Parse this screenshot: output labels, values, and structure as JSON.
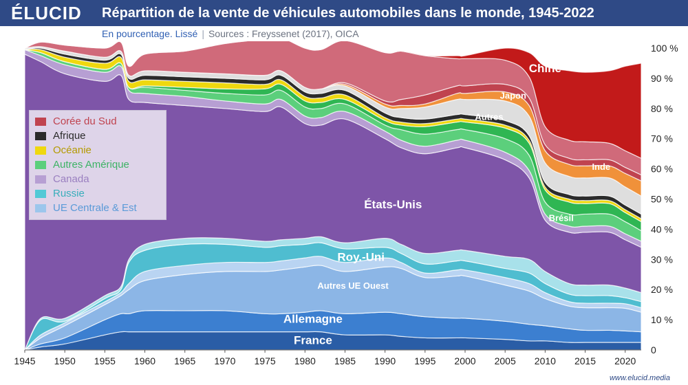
{
  "header": {
    "logo": "ÉLUCID",
    "title": "Répartition de la vente de véhicules automobiles dans le monde, 1945-2022",
    "subtitle": "En pourcentage. Lissé",
    "separator": "|",
    "sources": "Sources : Freyssenet (2017), OICA",
    "watermark": "www.elucid.media"
  },
  "legend": [
    {
      "name": "Corée du Sud",
      "color": "#c0434f",
      "text_color": "#c0434f"
    },
    {
      "name": "Afrique",
      "color": "#2b2b2b",
      "text_color": "#2b2b2b"
    },
    {
      "name": "Océanie",
      "color": "#efd80f",
      "text_color": "#b49a00"
    },
    {
      "name": "Autres Amérique",
      "color": "#5ccf7c",
      "text_color": "#3db365"
    },
    {
      "name": "Canada",
      "color": "#b79fd3",
      "text_color": "#9a7fc0"
    },
    {
      "name": "Russie",
      "color": "#52c9d6",
      "text_color": "#38aebb"
    },
    {
      "name": "UE Centrale & Est",
      "color": "#9cc6ec",
      "text_color": "#5a9ad8"
    }
  ],
  "chart_data": {
    "type": "area",
    "stacked": true,
    "title": "Répartition de la vente de véhicules automobiles dans le monde, 1945-2022",
    "subtitle": "En pourcentage. Lissé",
    "x": [
      1945,
      1947,
      1950,
      1955,
      1957,
      1958,
      1960,
      1965,
      1970,
      1975,
      1977,
      1980,
      1982,
      1985,
      1990,
      1992,
      1995,
      1999,
      2000,
      2005,
      2008,
      2010,
      2013,
      2015,
      2018,
      2020,
      2022
    ],
    "xlim": [
      1945,
      2022
    ],
    "ylim": [
      0,
      100
    ],
    "xticks": [
      1945,
      1950,
      1955,
      1960,
      1965,
      1970,
      1975,
      1980,
      1985,
      1990,
      1995,
      2000,
      2005,
      2010,
      2015,
      2020
    ],
    "yticks": [
      {
        "value": 0,
        "label": "0"
      },
      {
        "value": 10,
        "label": "10 %"
      },
      {
        "value": 20,
        "label": "20 %"
      },
      {
        "value": 30,
        "label": "30 %"
      },
      {
        "value": 40,
        "label": "40 %"
      },
      {
        "value": 50,
        "label": "50 %"
      },
      {
        "value": 60,
        "label": "60 %"
      },
      {
        "value": 70,
        "label": "70 %"
      },
      {
        "value": 80,
        "label": "80 %"
      },
      {
        "value": 90,
        "label": "90 %"
      },
      {
        "value": 100,
        "label": "100 %"
      }
    ],
    "series": [
      {
        "name": "France",
        "color": "#2a5da6",
        "values": [
          0,
          1,
          2,
          5,
          6,
          6,
          6,
          6,
          6,
          6,
          6,
          6,
          6,
          5,
          5,
          4.5,
          4,
          4,
          4,
          3.5,
          3,
          3,
          2.5,
          2.5,
          2.5,
          2.5,
          2.5
        ]
      },
      {
        "name": "Allemagne",
        "color": "#3c7fd0",
        "values": [
          0,
          1,
          2,
          5,
          6,
          6,
          7,
          7,
          7,
          6,
          6,
          6.5,
          7,
          7,
          7.5,
          7.5,
          7,
          6.5,
          6.5,
          6,
          5.5,
          5,
          4.5,
          4,
          4,
          3.8,
          3.5
        ]
      },
      {
        "name": "Autres UE Ouest",
        "color": "#8cb6e6",
        "values": [
          0,
          2,
          4,
          5,
          6,
          8,
          10,
          12,
          13,
          14,
          14.5,
          15,
          15,
          14,
          15,
          15,
          13,
          14,
          14,
          12,
          11,
          9,
          7.5,
          7.5,
          7.5,
          7.5,
          6.5
        ]
      },
      {
        "name": "UE Centrale & Est",
        "color": "#b9d4f2",
        "values": [
          0,
          1,
          1,
          1,
          1,
          2,
          3,
          3,
          3,
          3,
          3,
          3,
          3,
          3,
          3,
          2,
          1.5,
          2,
          2,
          2.5,
          2.5,
          2,
          1.5,
          1.5,
          1.5,
          1.5,
          1.5
        ]
      },
      {
        "name": "Russie",
        "color": "#4fbdd0",
        "values": [
          0,
          5,
          0.5,
          1,
          1,
          7,
          7,
          7,
          6,
          5,
          5,
          4.5,
          4.5,
          4.5,
          3.5,
          3,
          3,
          3,
          3,
          3,
          3.5,
          3,
          2.5,
          2.5,
          2.5,
          2,
          2
        ]
      },
      {
        "name": "Royaume-Uni",
        "color": "#a8e1ea",
        "values": [
          0,
          0.5,
          1,
          1,
          1,
          1,
          2,
          2,
          2,
          2,
          2,
          2,
          2,
          2,
          3,
          3,
          3.5,
          3.5,
          3.5,
          4,
          4.5,
          4,
          3.5,
          3.5,
          3.5,
          3.2,
          3
        ]
      },
      {
        "name": "États-Unis",
        "color": "#7e55a8",
        "values": [
          98,
          85,
          81,
          71,
          70,
          53,
          47,
          44,
          43,
          43,
          44,
          38,
          37,
          41,
          33,
          32,
          33,
          34,
          34,
          32,
          27,
          17,
          17,
          17.5,
          17.5,
          16,
          15
        ]
      },
      {
        "name": "Canada",
        "color": "#b79fd3",
        "values": [
          1.5,
          2,
          3,
          3,
          3,
          3,
          3,
          3,
          2.5,
          2.5,
          2.5,
          2.5,
          2.5,
          2.5,
          2.5,
          2.5,
          2.5,
          2.5,
          2.5,
          2.5,
          2.5,
          2,
          2,
          2,
          2,
          2,
          2
        ]
      },
      {
        "name": "Autres Amérique",
        "color": "#5ccf7c",
        "values": [
          0,
          1,
          1,
          1,
          1,
          1,
          2,
          2,
          2.5,
          3,
          3,
          3,
          3,
          2.5,
          2,
          3.5,
          4,
          3.5,
          3.5,
          4.5,
          5,
          4,
          4,
          4,
          4,
          4,
          3.5
        ]
      },
      {
        "name": "Brésil",
        "color": "#2fb653",
        "values": [
          0,
          0,
          0,
          0,
          0,
          0,
          0.5,
          1,
          1.5,
          2,
          2,
          2,
          2,
          1.5,
          1.5,
          1.5,
          2.5,
          2.5,
          2.5,
          3.5,
          4,
          4,
          4,
          3.5,
          3.5,
          3,
          3
        ]
      },
      {
        "name": "Océanie",
        "color": "#efd80f",
        "values": [
          0,
          1,
          1.5,
          2,
          2,
          2,
          2,
          2,
          2,
          1.5,
          1.5,
          1.5,
          1.5,
          1.5,
          1,
          1,
          1,
          1,
          1,
          1,
          1,
          1,
          1,
          1,
          1,
          1,
          1
        ]
      },
      {
        "name": "Afrique",
        "color": "#2b2b2b",
        "values": [
          0,
          0.5,
          1,
          1,
          1,
          1,
          1.5,
          1.5,
          1.5,
          1.5,
          1.5,
          1.5,
          1.5,
          1.5,
          1.5,
          1.5,
          1.5,
          1.5,
          1.5,
          1.5,
          1.5,
          1.5,
          1.5,
          1.5,
          1.5,
          1.5,
          1.5
        ]
      },
      {
        "name": "Autres",
        "color": "#dedede",
        "values": [
          0.5,
          0.5,
          1,
          1,
          1,
          1,
          1.5,
          1.5,
          1.5,
          1.5,
          1.5,
          1.5,
          1.5,
          1.5,
          2,
          3,
          4,
          5,
          5,
          6.5,
          6.5,
          6.5,
          6,
          6,
          6,
          6,
          6
        ]
      },
      {
        "name": "Inde",
        "color": "#f0913a",
        "values": [
          0,
          0,
          0,
          0,
          0,
          0,
          0,
          0,
          0,
          0,
          0,
          0,
          0,
          0.5,
          1,
          1,
          1,
          2,
          2,
          3,
          3.5,
          4,
          4,
          4,
          4,
          4.5,
          5
        ]
      },
      {
        "name": "Corée du Sud",
        "color": "#c0434f",
        "values": [
          0,
          0,
          0,
          0,
          0,
          0,
          0,
          0,
          0,
          0,
          0,
          0,
          0,
          0.5,
          1,
          2,
          3,
          2.5,
          2.5,
          2.5,
          2.5,
          2,
          2,
          2,
          2,
          2,
          2
        ]
      },
      {
        "name": "Japon",
        "color": "#d06a7a",
        "values": [
          0,
          1.5,
          2,
          3,
          3,
          3,
          5.5,
          7,
          10,
          12,
          11,
          13,
          13,
          14,
          16,
          16,
          13,
          9,
          9,
          8,
          7,
          6,
          6,
          6,
          5.5,
          5.5,
          5.5
        ]
      },
      {
        "name": "Chine",
        "color": "#c21a1a",
        "values": [
          0,
          0,
          0,
          0,
          0,
          0,
          0,
          0,
          0,
          0,
          0,
          0,
          0,
          0,
          0,
          0,
          0,
          1,
          1,
          4,
          8,
          20,
          23,
          23,
          24,
          28,
          31.5
        ]
      }
    ],
    "area_labels": [
      {
        "text": "France",
        "series": "France",
        "x": 1981,
        "y": 3,
        "color": "#ffffff",
        "size": "large"
      },
      {
        "text": "Allemagne",
        "series": "Allemagne",
        "x": 1981,
        "y": 10,
        "color": "#ffffff",
        "size": "large"
      },
      {
        "text": "Autres UE Ouest",
        "series": "Autres UE Ouest",
        "x": 1986,
        "y": 21,
        "color": "#ffffff",
        "size": "small"
      },
      {
        "text": "Roy.-Uni",
        "series": "Royaume-Uni",
        "x": 1987,
        "y": 30.5,
        "color": "#ffffff",
        "size": "large"
      },
      {
        "text": "États-Unis",
        "series": "États-Unis",
        "x": 1991,
        "y": 48,
        "color": "#ffffff",
        "size": "large"
      },
      {
        "text": "Brésil",
        "series": "Brésil",
        "x": 2012,
        "y": 43.5,
        "color": "#ffffff",
        "size": "small"
      },
      {
        "text": "Autres",
        "series": "Autres",
        "x": 2003,
        "y": 77,
        "color": "#ffffff",
        "size": "small"
      },
      {
        "text": "Japon",
        "series": "Japon",
        "x": 2006,
        "y": 84,
        "color": "#ffffff",
        "size": "small"
      },
      {
        "text": "Inde",
        "series": "Inde",
        "x": 2017,
        "y": 60.5,
        "color": "#ffffff",
        "size": "small"
      },
      {
        "text": "Chine",
        "series": "Chine",
        "x": 2010,
        "y": 93,
        "color": "#ffffff",
        "size": "large"
      }
    ]
  }
}
